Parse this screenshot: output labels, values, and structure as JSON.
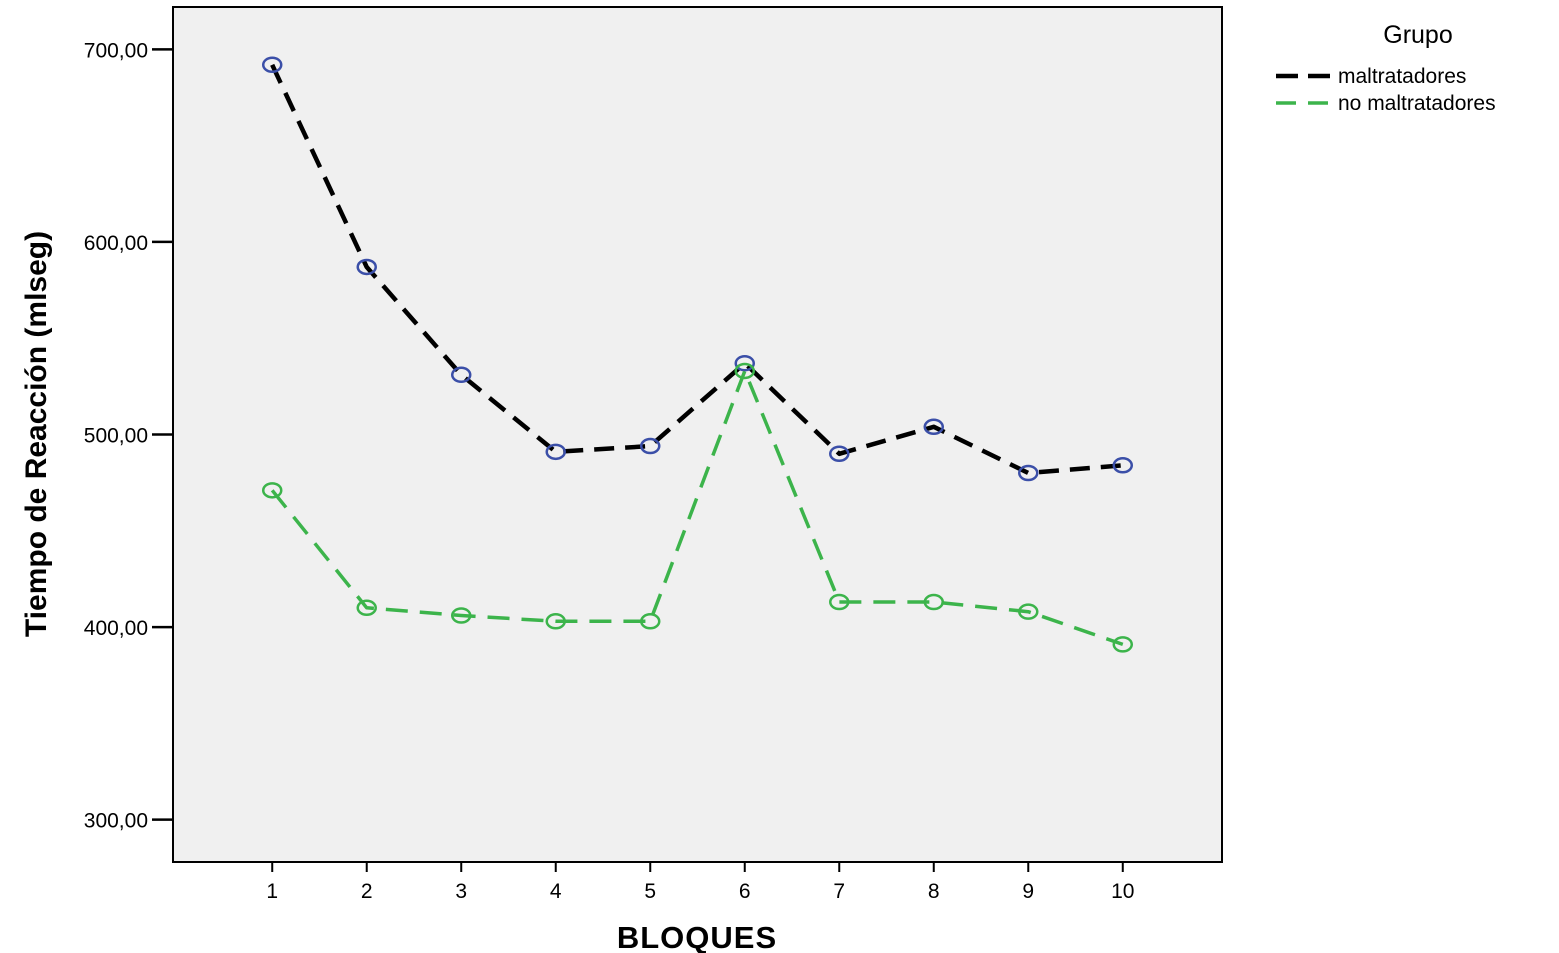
{
  "chart_data": {
    "type": "line",
    "title": "",
    "xlabel": "BLOQUES",
    "ylabel": "Tiempo de Reacción (mlseg)",
    "x": [
      1,
      2,
      3,
      4,
      5,
      6,
      7,
      8,
      9,
      10
    ],
    "x_tick_labels": [
      "1",
      "2",
      "3",
      "4",
      "5",
      "6",
      "7",
      "8",
      "9",
      "10"
    ],
    "xlim": [
      -0.05,
      11.05
    ],
    "y_ticks": [
      300,
      400,
      500,
      600,
      700
    ],
    "y_tick_labels": [
      "300,00",
      "400,00",
      "500,00",
      "600,00",
      "700,00"
    ],
    "ylim": [
      278,
      722
    ],
    "grid": false,
    "legend": {
      "title": "Grupo",
      "placement": "right"
    },
    "series": [
      {
        "name": "maltratadores",
        "color": "#000000",
        "marker_color": "#3b4fa8",
        "values": [
          692,
          587,
          531,
          491,
          494,
          537,
          490,
          504,
          480,
          484
        ]
      },
      {
        "name": "no maltratadores",
        "color": "#3cb44b",
        "marker_color": "#3cb44b",
        "values": [
          471,
          410,
          406,
          403,
          403,
          533,
          413,
          413,
          408,
          391
        ]
      }
    ]
  }
}
